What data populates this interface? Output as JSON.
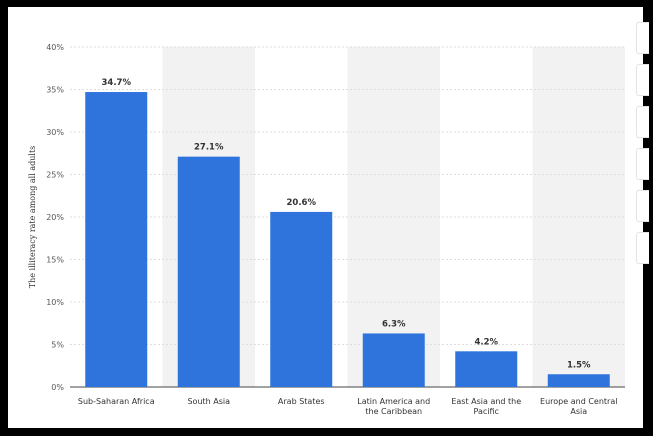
{
  "chart_data": {
    "type": "bar",
    "categories": [
      [
        "Sub-Saharan Africa"
      ],
      [
        "South Asia"
      ],
      [
        "Arab States"
      ],
      [
        "Latin America and",
        "the Caribbean"
      ],
      [
        "East Asia and the",
        "Pacific"
      ],
      [
        "Europe and Central",
        "Asia"
      ]
    ],
    "values": [
      34.7,
      27.1,
      20.6,
      6.3,
      4.2,
      1.5
    ],
    "value_labels": [
      "34.7%",
      "27.1%",
      "20.6%",
      "6.3%",
      "4.2%",
      "1.5%"
    ],
    "ylabel": "The illiteracy rate among all adults",
    "ylim": [
      0,
      40
    ],
    "yticks": [
      "0%",
      "5%",
      "10%",
      "15%",
      "20%",
      "25%",
      "30%",
      "35%",
      "40%"
    ],
    "ytick_values": [
      0,
      5,
      10,
      15,
      20,
      25,
      30,
      35,
      40
    ],
    "grid": true,
    "colors": {
      "bar": "#2f74dc",
      "band": "#f2f2f2",
      "grid": "#dddddd"
    }
  }
}
